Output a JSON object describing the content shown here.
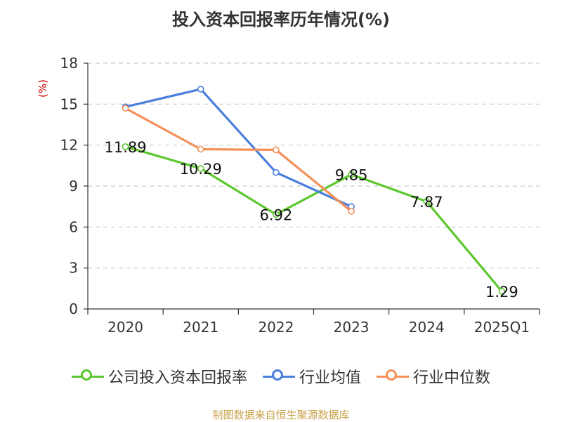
{
  "title": "投入资本回报率历年情况(%)",
  "source": "制图数据来自恒生聚源数据库",
  "chart_data": {
    "type": "line",
    "title": "投入资本回报率历年情况(%)",
    "ylabel": "(%)",
    "ylim": [
      0,
      18
    ],
    "yticks": [
      0,
      3,
      6,
      9,
      12,
      15,
      18
    ],
    "grid": true,
    "legend_position": "bottom",
    "categories": [
      "2020",
      "2021",
      "2022",
      "2023",
      "2024",
      "2025Q1"
    ],
    "series": [
      {
        "name": "公司投入资本回报率",
        "color": "#5cc72e",
        "values": [
          11.89,
          10.29,
          6.92,
          9.85,
          7.87,
          1.29
        ],
        "labels": [
          "11.89",
          "10.29",
          "6.92",
          "9.85",
          "7.87",
          "1.29"
        ]
      },
      {
        "name": "行业均值",
        "color": "#4a7fdc",
        "values": [
          14.8,
          16.1,
          10.0,
          7.5,
          null,
          null
        ]
      },
      {
        "name": "行业中位数",
        "color": "#f5905a",
        "values": [
          14.7,
          11.7,
          11.65,
          7.15,
          null,
          null
        ]
      }
    ]
  }
}
